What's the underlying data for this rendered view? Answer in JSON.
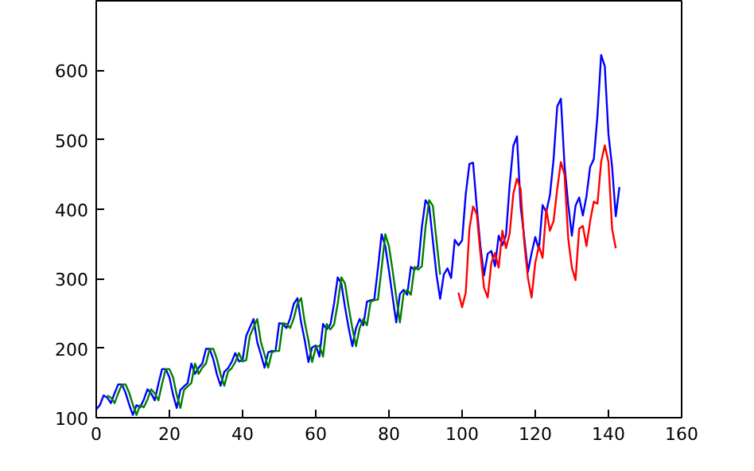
{
  "chart_data": {
    "type": "line",
    "x": [
      0,
      1,
      2,
      3,
      4,
      5,
      6,
      7,
      8,
      9,
      10,
      11,
      12,
      13,
      14,
      15,
      16,
      17,
      18,
      19,
      20,
      21,
      22,
      23,
      24,
      25,
      26,
      27,
      28,
      29,
      30,
      31,
      32,
      33,
      34,
      35,
      36,
      37,
      38,
      39,
      40,
      41,
      42,
      43,
      44,
      45,
      46,
      47,
      48,
      49,
      50,
      51,
      52,
      53,
      54,
      55,
      56,
      57,
      58,
      59,
      60,
      61,
      62,
      63,
      64,
      65,
      66,
      67,
      68,
      69,
      70,
      71,
      72,
      73,
      74,
      75,
      76,
      77,
      78,
      79,
      80,
      81,
      82,
      83,
      84,
      85,
      86,
      87,
      88,
      89,
      90,
      91,
      92,
      93,
      94,
      95,
      96,
      97,
      98,
      99,
      100,
      101,
      102,
      103,
      104,
      105,
      106,
      107,
      108,
      109,
      110,
      111,
      112,
      113,
      114,
      115,
      116,
      117,
      118,
      119,
      120,
      121,
      122,
      123,
      124,
      125,
      126,
      127,
      128,
      129,
      130,
      131,
      132,
      133,
      134,
      135,
      136,
      137,
      138,
      139,
      140,
      141,
      142,
      143
    ],
    "series": [
      {
        "color": "#0000ff",
        "values": [
          112,
          118,
          132,
          129,
          121,
          135,
          148,
          148,
          136,
          119,
          104,
          118,
          115,
          126,
          141,
          135,
          125,
          149,
          170,
          170,
          158,
          133,
          114,
          140,
          145,
          150,
          178,
          163,
          172,
          178,
          199,
          199,
          184,
          162,
          146,
          166,
          171,
          180,
          193,
          181,
          183,
          218,
          230,
          242,
          209,
          191,
          172,
          194,
          196,
          196,
          236,
          235,
          229,
          243,
          264,
          272,
          237,
          211,
          180,
          201,
          204,
          188,
          235,
          227,
          234,
          264,
          302,
          293,
          259,
          229,
          203,
          229,
          242,
          233,
          267,
          269,
          270,
          315,
          364,
          347,
          312,
          274,
          237,
          278,
          284,
          277,
          317,
          313,
          318,
          374,
          413,
          405,
          355,
          306,
          271,
          306,
          315,
          301,
          356,
          348,
          355,
          422,
          465,
          467,
          404,
          347,
          305,
          336,
          340,
          318,
          362,
          348,
          363,
          435,
          491,
          505,
          404,
          359,
          310,
          337,
          360,
          342,
          406,
          396,
          420,
          472,
          548,
          559,
          463,
          407,
          362,
          405,
          417,
          391,
          419,
          461,
          472,
          535,
          622,
          606,
          508,
          461,
          390,
          432
        ]
      },
      {
        "color": "#008000",
        "x": [
          3,
          4,
          5,
          6,
          7,
          8,
          9,
          10,
          11,
          12,
          13,
          14,
          15,
          16,
          17,
          18,
          19,
          20,
          21,
          22,
          23,
          24,
          25,
          26,
          27,
          28,
          29,
          30,
          31,
          32,
          33,
          34,
          35,
          36,
          37,
          38,
          39,
          40,
          41,
          42,
          43,
          44,
          45,
          46,
          47,
          48,
          49,
          50,
          51,
          52,
          53,
          54,
          55,
          56,
          57,
          58,
          59,
          60,
          61,
          62,
          63,
          64,
          65,
          66,
          67,
          68,
          69,
          70,
          71,
          72,
          73,
          74,
          75,
          76,
          77,
          78,
          79,
          80,
          81,
          82,
          83,
          84,
          85,
          86,
          87,
          88,
          89,
          90,
          91,
          92,
          93,
          94
        ],
        "values": [
          132,
          129,
          121,
          135,
          148,
          148,
          136,
          119,
          104,
          118,
          115,
          126,
          141,
          135,
          125,
          149,
          170,
          170,
          158,
          133,
          114,
          140,
          145,
          150,
          178,
          163,
          172,
          178,
          199,
          199,
          184,
          162,
          146,
          166,
          171,
          180,
          193,
          181,
          183,
          218,
          230,
          242,
          209,
          191,
          172,
          194,
          196,
          196,
          236,
          235,
          229,
          243,
          264,
          272,
          237,
          211,
          180,
          201,
          204,
          188,
          235,
          227,
          234,
          264,
          302,
          293,
          259,
          229,
          203,
          229,
          242,
          233,
          267,
          269,
          270,
          315,
          364,
          347,
          312,
          274,
          237,
          278,
          284,
          277,
          317,
          313,
          318,
          374,
          413,
          405,
          355,
          306
        ]
      },
      {
        "color": "#ff0000",
        "x": [
          99,
          100,
          101,
          102,
          103,
          104,
          105,
          106,
          107,
          108,
          109,
          110,
          111,
          112,
          113,
          114,
          115,
          116,
          117,
          118,
          119,
          120,
          121,
          122,
          123,
          124,
          125,
          126,
          127,
          128,
          129,
          130,
          131,
          132,
          133,
          134,
          135,
          136,
          137,
          138,
          139,
          140,
          141,
          142
        ],
        "values": [
          280,
          259,
          280,
          372,
          404,
          393,
          337,
          287,
          273,
          323,
          337,
          316,
          369,
          344,
          365,
          422,
          444,
          429,
          351,
          301,
          273,
          323,
          347,
          330,
          400,
          369,
          383,
          429,
          468,
          450,
          358,
          316,
          298,
          372,
          376,
          347,
          383,
          411,
          408,
          468,
          492,
          468,
          372,
          344
        ]
      }
    ],
    "xlim": [
      0,
      160
    ],
    "xticks": [
      0,
      20,
      40,
      60,
      80,
      100,
      120,
      140,
      160
    ],
    "ylim": [
      100,
      700
    ],
    "yticks": [
      100,
      200,
      300,
      400,
      500,
      600
    ],
    "grid": false
  }
}
